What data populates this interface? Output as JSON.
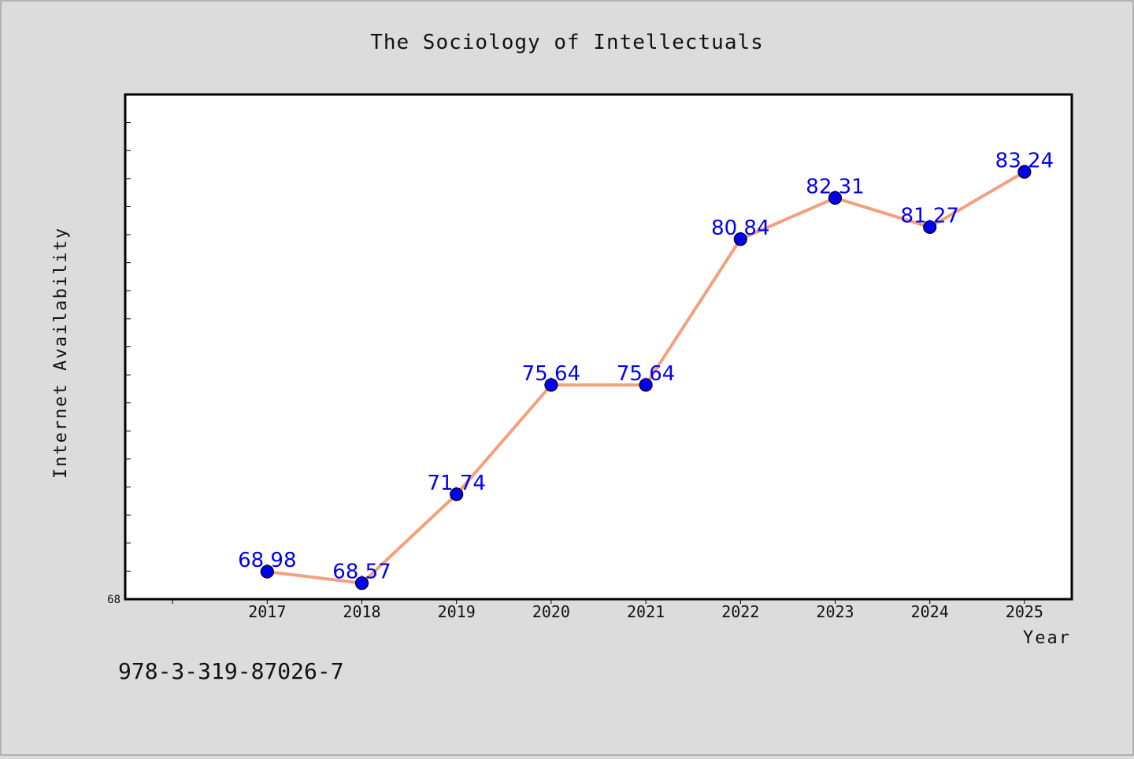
{
  "chart_data": {
    "type": "line",
    "title": "The Sociology of Intellectuals",
    "xlabel": "Year",
    "ylabel": "Internet Availability",
    "categories": [
      "2017",
      "2018",
      "2019",
      "2020",
      "2021",
      "2022",
      "2023",
      "2024",
      "2025"
    ],
    "series": [
      {
        "values": [
          68.98,
          68.57,
          71.74,
          75.64,
          75.64,
          80.84,
          82.31,
          81.27,
          83.24
        ]
      }
    ],
    "data_labels": [
      "68.98",
      "68.57",
      "71.74",
      "75.64",
      "75.64",
      "80.84",
      "82.31",
      "81.27",
      "83.24"
    ],
    "ylim": [
      68,
      86
    ],
    "y_tick_labels": [
      "68"
    ],
    "x_range": [
      2015.5,
      2025.5
    ],
    "grid": false,
    "line_color": "#f4a07c",
    "marker_color": "#0000ee",
    "label_color": "#0000ee"
  },
  "footer": {
    "isbn": "978-3-319-87026-7"
  }
}
